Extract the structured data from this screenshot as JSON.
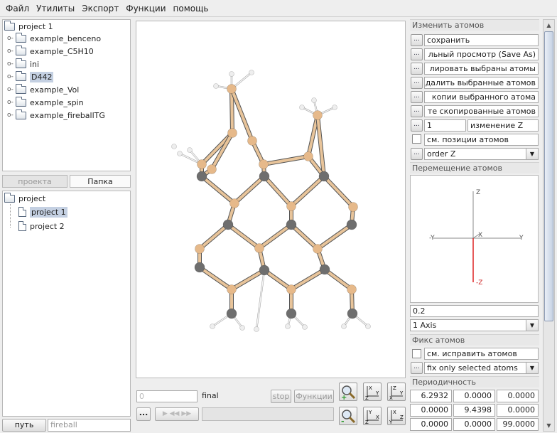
{
  "menu": [
    "Файл",
    "Утилиты",
    "Экспорт",
    "Функции",
    "помощь"
  ],
  "project_tree": {
    "root": "project 1",
    "items": [
      "example_benceno",
      "example_C5H10",
      "ini",
      "D442",
      "example_Vol",
      "example_spin",
      "example_fireballTG"
    ],
    "selected_index": 3
  },
  "tabs": {
    "project": "проекта",
    "folder": "Папка"
  },
  "file_tree": {
    "root": "project",
    "items": [
      "project 1",
      "project 2"
    ],
    "selected_index": 0
  },
  "path": {
    "button": "путь",
    "value": "fireball"
  },
  "viewer": {
    "frame_value": "0",
    "final_label": "final",
    "stop_label": "stop",
    "functions_label": "Функции",
    "dots_label": "..."
  },
  "modify": {
    "title": "Изменить атомов",
    "buttons": [
      "сохранить",
      "льный просмотр (Save As)",
      "лировать выбраны атомы",
      "далить выбранные атомов",
      "копии выбранного атома",
      "те скопированные атомов"
    ],
    "z_value": "1",
    "z_label": "изменение Z",
    "show_positions_label": "см. позиции атомов",
    "order_select": "order Z"
  },
  "move": {
    "title": "Перемещение атомов",
    "axis_labels": {
      "z_top": "Z",
      "y_left": "-Y",
      "y_right": "Y",
      "x": "X",
      "z_bottom": "-Z"
    },
    "step_value": "0.2",
    "axis_select": "1 Axis"
  },
  "fix": {
    "title": "Фикс атомов",
    "fix_label": "см. исправить атомов",
    "fix_select": "fix only selected atoms"
  },
  "periodicity": {
    "title": "Периодичность",
    "rows": [
      [
        "6.2932",
        "0.0000",
        "0.0000"
      ],
      [
        "0.0000",
        "9.4398",
        "0.0000"
      ],
      [
        "0.0000",
        "0.0000",
        "99.0000"
      ]
    ]
  },
  "colors": {
    "gray_atom": "#6e6e6e",
    "tan_atom": "#e6b98a",
    "hydrogen": "#eeeeee",
    "bond_tan": "#e8c49a",
    "selection": "#c4d0e2"
  }
}
